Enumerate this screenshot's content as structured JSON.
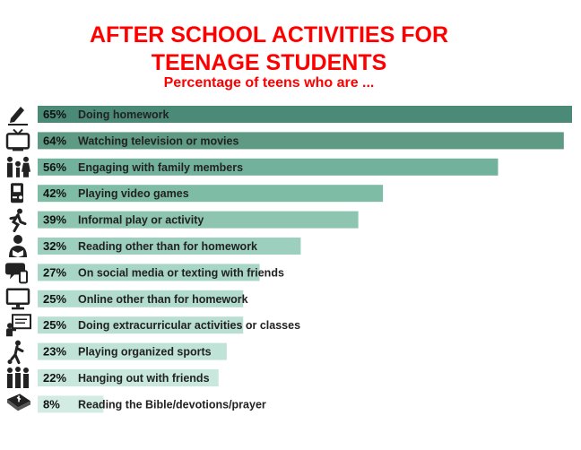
{
  "title_line1": "AFTER SCHOOL ACTIVITIES FOR",
  "title_line2": "TEENAGE STUDENTS",
  "subtitle": "Percentage of teens who are ...",
  "chart_data": {
    "type": "bar",
    "orientation": "horizontal",
    "title": "AFTER SCHOOL ACTIVITIES FOR TEENAGE STUDENTS",
    "subtitle": "Percentage of teens who are ...",
    "xlim": [
      0,
      65
    ],
    "unit": "%",
    "categories": [
      "Doing homework",
      "Watching television or movies",
      "Engaging with family members",
      "Playing video games",
      "Informal play or activity",
      "Reading other than for homework",
      "On social media or texting with friends",
      "Online other than for homework",
      "Doing extracurricular activities or classes",
      "Playing organized sports",
      "Hanging out with friends",
      "Reading the Bible/devotions/prayer"
    ],
    "values": [
      65,
      64,
      56,
      42,
      39,
      32,
      27,
      25,
      25,
      23,
      22,
      8
    ],
    "value_labels": [
      "65%",
      "64%",
      "56%",
      "42%",
      "39%",
      "32%",
      "27%",
      "25%",
      "25%",
      "23%",
      "22%",
      "8%"
    ],
    "icons": [
      "pencil-icon",
      "television-icon",
      "family-icon",
      "game-device-icon",
      "running-person-icon",
      "reading-person-icon",
      "chat-bubble-icon",
      "monitor-icon",
      "classroom-board-icon",
      "soccer-player-icon",
      "friends-icon",
      "bible-icon"
    ],
    "colors": [
      "#4a8a76",
      "#5e9a84",
      "#72b29c",
      "#7fbca6",
      "#8dc5b1",
      "#9ccfbd",
      "#a8d6c6",
      "#b2dcce",
      "#b8dfd2",
      "#c0e3d7",
      "#c8e8dd",
      "#d2ece4"
    ]
  }
}
